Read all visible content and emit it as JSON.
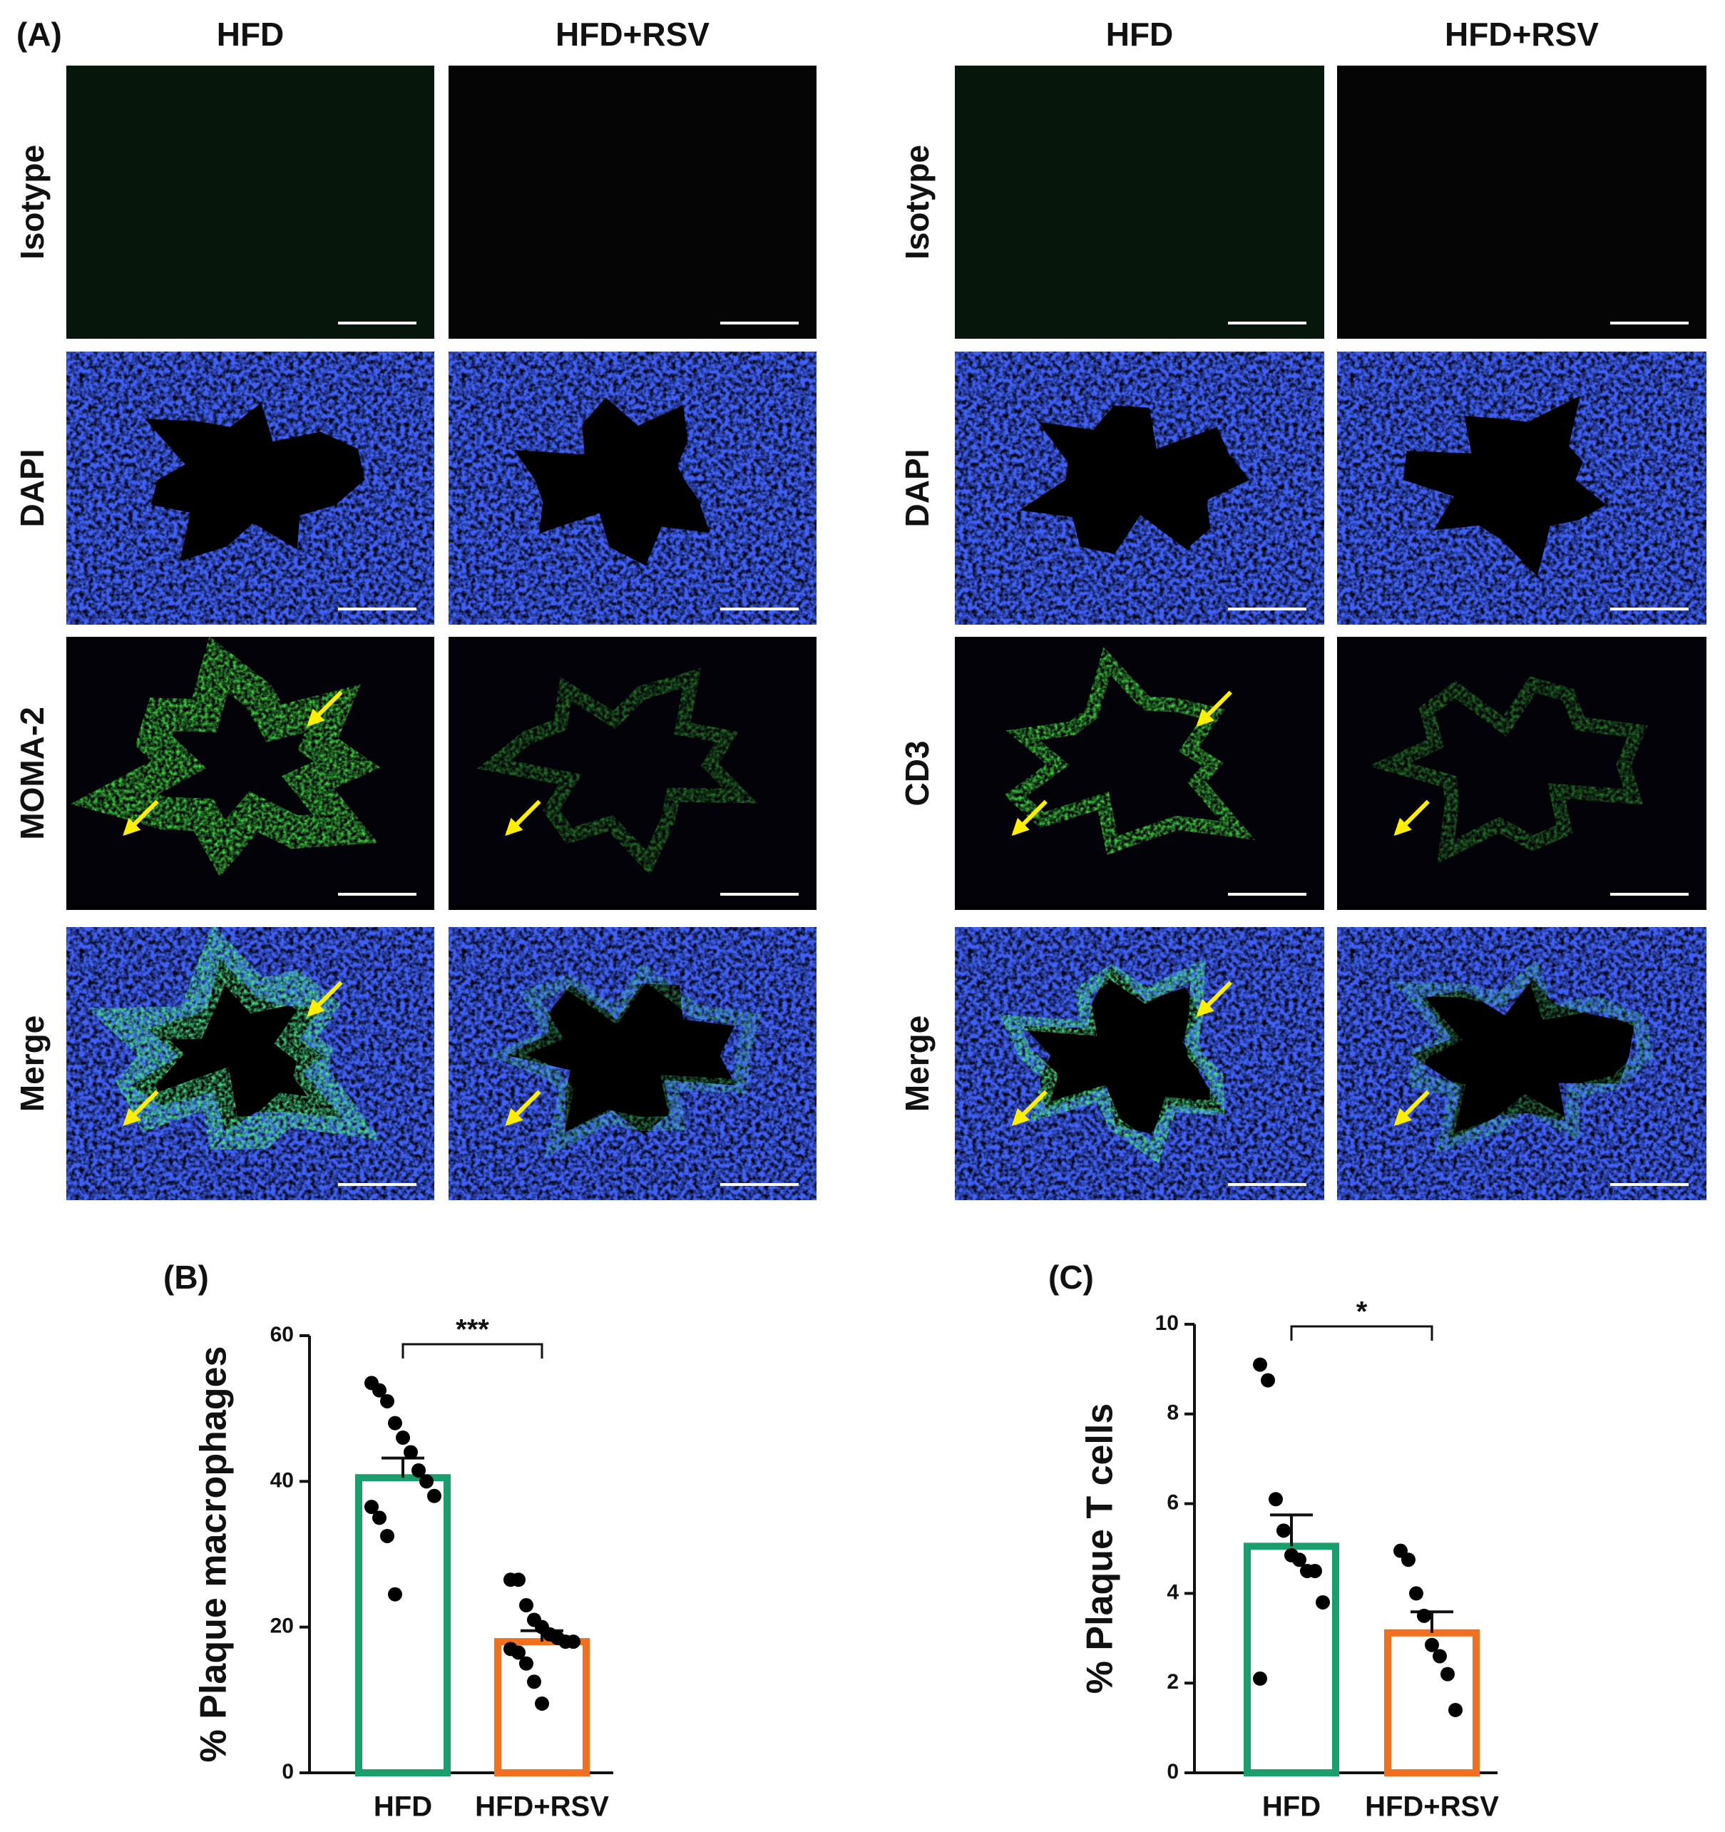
{
  "panel_a": {
    "label": "(A)",
    "left": {
      "columns": [
        "HFD",
        "HFD+RSV"
      ],
      "rows": [
        "Isotype",
        "DAPI",
        "MOMA-2",
        "Merge"
      ]
    },
    "right": {
      "columns": [
        "HFD",
        "HFD+RSV"
      ],
      "rows": [
        "Isotype",
        "DAPI",
        "CD3",
        "Merge"
      ]
    }
  },
  "chart_data": [
    {
      "type": "bar",
      "panel_label": "(B)",
      "y_label": "% Plaque macrophages",
      "categories": [
        "HFD",
        "HFD+RSV"
      ],
      "values": [
        40.5,
        18
      ],
      "errors": [
        2.7,
        1.5
      ],
      "colors": [
        "#1a9e6e",
        "#f07020"
      ],
      "points": [
        [
          53.5,
          52.5,
          51,
          48,
          46,
          44,
          41.5,
          40,
          38,
          36.5,
          35,
          32.5,
          24.5
        ],
        [
          26.5,
          26.5,
          23,
          21,
          20,
          19,
          18.5,
          18,
          18,
          17,
          16.5,
          15,
          12.5,
          9.5
        ]
      ],
      "significance": "***",
      "ylim": [
        0,
        60
      ],
      "yticks": [
        0,
        20,
        40,
        60
      ]
    },
    {
      "type": "bar",
      "panel_label": "(C)",
      "y_label": "% Plaque T cells",
      "categories": [
        "HFD",
        "HFD+RSV"
      ],
      "values": [
        5.05,
        3.12
      ],
      "errors": [
        0.7,
        0.47
      ],
      "colors": [
        "#1a9e6e",
        "#f07020"
      ],
      "points": [
        [
          9.1,
          8.75,
          6.1,
          5.4,
          4.85,
          4.75,
          4.5,
          4.5,
          3.8,
          2.1
        ],
        [
          4.95,
          4.75,
          4.0,
          3.5,
          2.85,
          2.6,
          2.2,
          1.4
        ]
      ],
      "significance": "*",
      "ylim": [
        0,
        10
      ],
      "yticks": [
        0,
        2,
        4,
        6,
        8,
        10
      ]
    }
  ]
}
